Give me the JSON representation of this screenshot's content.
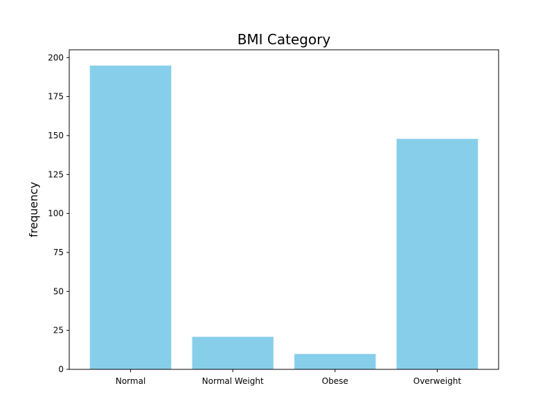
{
  "chart_data": {
    "type": "bar",
    "title": "BMI Category",
    "xlabel": "",
    "ylabel": "frequency",
    "categories": [
      "Normal",
      "Normal Weight",
      "Obese",
      "Overweight"
    ],
    "values": [
      195,
      21,
      10,
      148
    ],
    "ylim": [
      0,
      205
    ],
    "yticks": [
      0,
      25,
      50,
      75,
      100,
      125,
      150,
      175,
      200
    ],
    "bar_color": "#87CEEB",
    "bar_edge_color": "#e8f4fa",
    "grid": false,
    "legend": "none"
  }
}
